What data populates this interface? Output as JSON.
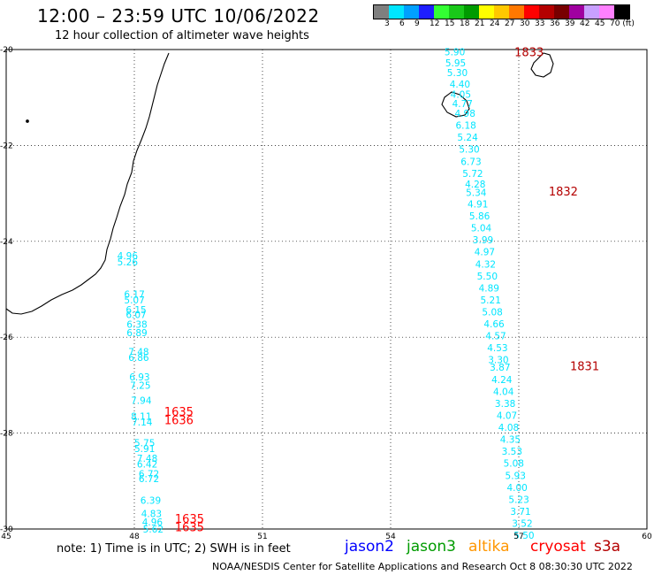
{
  "title": "12:00 – 23:59 UTC 10/06/2022",
  "subtitle": "12 hour collection of altimeter wave heights",
  "legend": {
    "colors": [
      "#7f7f7f",
      "#00e5ff",
      "#00a0ff",
      "#1e1eff",
      "#33ff33",
      "#19c819",
      "#009b00",
      "#ffff00",
      "#ffc800",
      "#ff7800",
      "#ff0000",
      "#b40000",
      "#780000",
      "#a000a0",
      "#c8a0ff",
      "#ff80ff",
      "#000000"
    ],
    "labels": [
      "3",
      "6",
      "9",
      "12",
      "15",
      "18",
      "21",
      "24",
      "27",
      "30",
      "33",
      "36",
      "39",
      "42",
      "45",
      "70 (ft)"
    ]
  },
  "axes": {
    "lat_ticks": [
      "-20",
      "-22",
      "-24",
      "-26",
      "-28",
      "-30"
    ],
    "lon_ticks": [
      "45",
      "48",
      "51",
      "54",
      "57",
      "60"
    ],
    "lat_range": [
      -30,
      -20
    ],
    "lon_range": [
      45,
      60
    ]
  },
  "tracks": [
    {
      "color": "#00e5ff",
      "label_color": "#b40000",
      "time_labels": [
        {
          "text": "1833",
          "lon": 56.9,
          "lat": -20.05
        },
        {
          "text": "1832",
          "lon": 57.7,
          "lat": -22.95
        },
        {
          "text": "1831",
          "lon": 58.2,
          "lat": -26.6
        }
      ],
      "points": [
        {
          "v": "5.90",
          "lon": 55.26,
          "lat": -20.05
        },
        {
          "v": "5.95",
          "lon": 55.28,
          "lat": -20.28
        },
        {
          "v": "5.30",
          "lon": 55.32,
          "lat": -20.48
        },
        {
          "v": "4.40",
          "lon": 55.38,
          "lat": -20.72
        },
        {
          "v": "4.05",
          "lon": 55.4,
          "lat": -20.93
        },
        {
          "v": "4.77",
          "lon": 55.44,
          "lat": -21.13
        },
        {
          "v": "4.98",
          "lon": 55.5,
          "lat": -21.33
        },
        {
          "v": "6.18",
          "lon": 55.52,
          "lat": -21.58
        },
        {
          "v": "5.24",
          "lon": 55.56,
          "lat": -21.83
        },
        {
          "v": "5.30",
          "lon": 55.6,
          "lat": -22.08
        },
        {
          "v": "6.73",
          "lon": 55.64,
          "lat": -22.33
        },
        {
          "v": "5.72",
          "lon": 55.68,
          "lat": -22.58
        },
        {
          "v": "4.28",
          "lon": 55.74,
          "lat": -22.8
        },
        {
          "v": "5.34",
          "lon": 55.76,
          "lat": -22.98
        },
        {
          "v": "4.91",
          "lon": 55.8,
          "lat": -23.22
        },
        {
          "v": "5.86",
          "lon": 55.84,
          "lat": -23.47
        },
        {
          "v": "5.04",
          "lon": 55.88,
          "lat": -23.72
        },
        {
          "v": "3.99",
          "lon": 55.92,
          "lat": -23.97
        },
        {
          "v": "4.97",
          "lon": 55.96,
          "lat": -24.22
        },
        {
          "v": "4.32",
          "lon": 55.98,
          "lat": -24.47
        },
        {
          "v": "5.50",
          "lon": 56.02,
          "lat": -24.72
        },
        {
          "v": "4.89",
          "lon": 56.06,
          "lat": -24.97
        },
        {
          "v": "5.21",
          "lon": 56.1,
          "lat": -25.22
        },
        {
          "v": "5.08",
          "lon": 56.14,
          "lat": -25.47
        },
        {
          "v": "4.66",
          "lon": 56.18,
          "lat": -25.72
        },
        {
          "v": "4.57",
          "lon": 56.22,
          "lat": -25.97
        },
        {
          "v": "4.53",
          "lon": 56.26,
          "lat": -26.22
        },
        {
          "v": "3.30",
          "lon": 56.28,
          "lat": -26.47
        },
        {
          "v": "3.87",
          "lon": 56.32,
          "lat": -26.62
        },
        {
          "v": "4.24",
          "lon": 56.36,
          "lat": -26.88
        },
        {
          "v": "4.04",
          "lon": 56.4,
          "lat": -27.13
        },
        {
          "v": "3.38",
          "lon": 56.44,
          "lat": -27.38
        },
        {
          "v": "4.07",
          "lon": 56.48,
          "lat": -27.63
        },
        {
          "v": "4.08",
          "lon": 56.52,
          "lat": -27.88
        },
        {
          "v": "4.35",
          "lon": 56.56,
          "lat": -28.13
        },
        {
          "v": "3.53",
          "lon": 56.6,
          "lat": -28.38
        },
        {
          "v": "5.08",
          "lon": 56.64,
          "lat": -28.63
        },
        {
          "v": "5.93",
          "lon": 56.68,
          "lat": -28.88
        },
        {
          "v": "4.00",
          "lon": 56.72,
          "lat": -29.13
        },
        {
          "v": "5.23",
          "lon": 56.76,
          "lat": -29.38
        },
        {
          "v": "3.71",
          "lon": 56.8,
          "lat": -29.63
        },
        {
          "v": "3.52",
          "lon": 56.84,
          "lat": -29.88
        },
        {
          "v": "5.50",
          "lon": 56.88,
          "lat": -30.13
        }
      ]
    },
    {
      "color": "#00e5ff",
      "label_color": "#ff0000",
      "time_labels": [
        {
          "text": "1635",
          "lon": 48.7,
          "lat": -27.55
        },
        {
          "text": "1636",
          "lon": 48.7,
          "lat": -27.72
        },
        {
          "text": "1635",
          "lon": 48.95,
          "lat": -29.78
        },
        {
          "text": "1635",
          "lon": 48.95,
          "lat": -29.95
        }
      ],
      "points": [
        {
          "v": "4.96",
          "lon": 47.6,
          "lat": -24.3
        },
        {
          "v": "5.26",
          "lon": 47.6,
          "lat": -24.43
        },
        {
          "v": "6.17",
          "lon": 47.76,
          "lat": -25.1
        },
        {
          "v": "5.07",
          "lon": 47.76,
          "lat": -25.22
        },
        {
          "v": "6.15",
          "lon": 47.8,
          "lat": -25.42
        },
        {
          "v": "6.07",
          "lon": 47.8,
          "lat": -25.53
        },
        {
          "v": "6.38",
          "lon": 47.82,
          "lat": -25.73
        },
        {
          "v": "6.89",
          "lon": 47.82,
          "lat": -25.9
        },
        {
          "v": "7.48",
          "lon": 47.86,
          "lat": -26.3
        },
        {
          "v": "6.86",
          "lon": 47.86,
          "lat": -26.42
        },
        {
          "v": "6.93",
          "lon": 47.88,
          "lat": -26.83
        },
        {
          "v": "7.25",
          "lon": 47.9,
          "lat": -27.0
        },
        {
          "v": "7.94",
          "lon": 47.92,
          "lat": -27.32
        },
        {
          "v": "8.11",
          "lon": 47.92,
          "lat": -27.65
        },
        {
          "v": "7.14",
          "lon": 47.94,
          "lat": -27.77
        },
        {
          "v": "5.75",
          "lon": 48.0,
          "lat": -28.2
        },
        {
          "v": "5.91",
          "lon": 48.0,
          "lat": -28.32
        },
        {
          "v": "7.48",
          "lon": 48.06,
          "lat": -28.52
        },
        {
          "v": "6.42",
          "lon": 48.06,
          "lat": -28.64
        },
        {
          "v": "6.72",
          "lon": 48.1,
          "lat": -28.85
        },
        {
          "v": "6.72",
          "lon": 48.1,
          "lat": -28.95
        },
        {
          "v": "6.39",
          "lon": 48.14,
          "lat": -29.4
        },
        {
          "v": "4.83",
          "lon": 48.16,
          "lat": -29.68
        },
        {
          "v": "4.96",
          "lon": 48.18,
          "lat": -29.85
        },
        {
          "v": "5.62",
          "lon": 48.2,
          "lat": -30.0
        }
      ]
    }
  ],
  "note": "note: 1) Time is in UTC; 2) SWH is in feet",
  "satellites": [
    {
      "name": "jason2",
      "color": "#0000ff"
    },
    {
      "name": "jason3",
      "color": "#009b00"
    },
    {
      "name": "altika",
      "color": "#ff9600"
    },
    {
      "name": "cryosat",
      "color": "#ff0000"
    },
    {
      "name": "s3a",
      "color": "#b40000"
    }
  ],
  "credit": "NOAA/NESDIS Center for Satellite Applications and Research   Oct  8 08:30:30 UTC 2022"
}
